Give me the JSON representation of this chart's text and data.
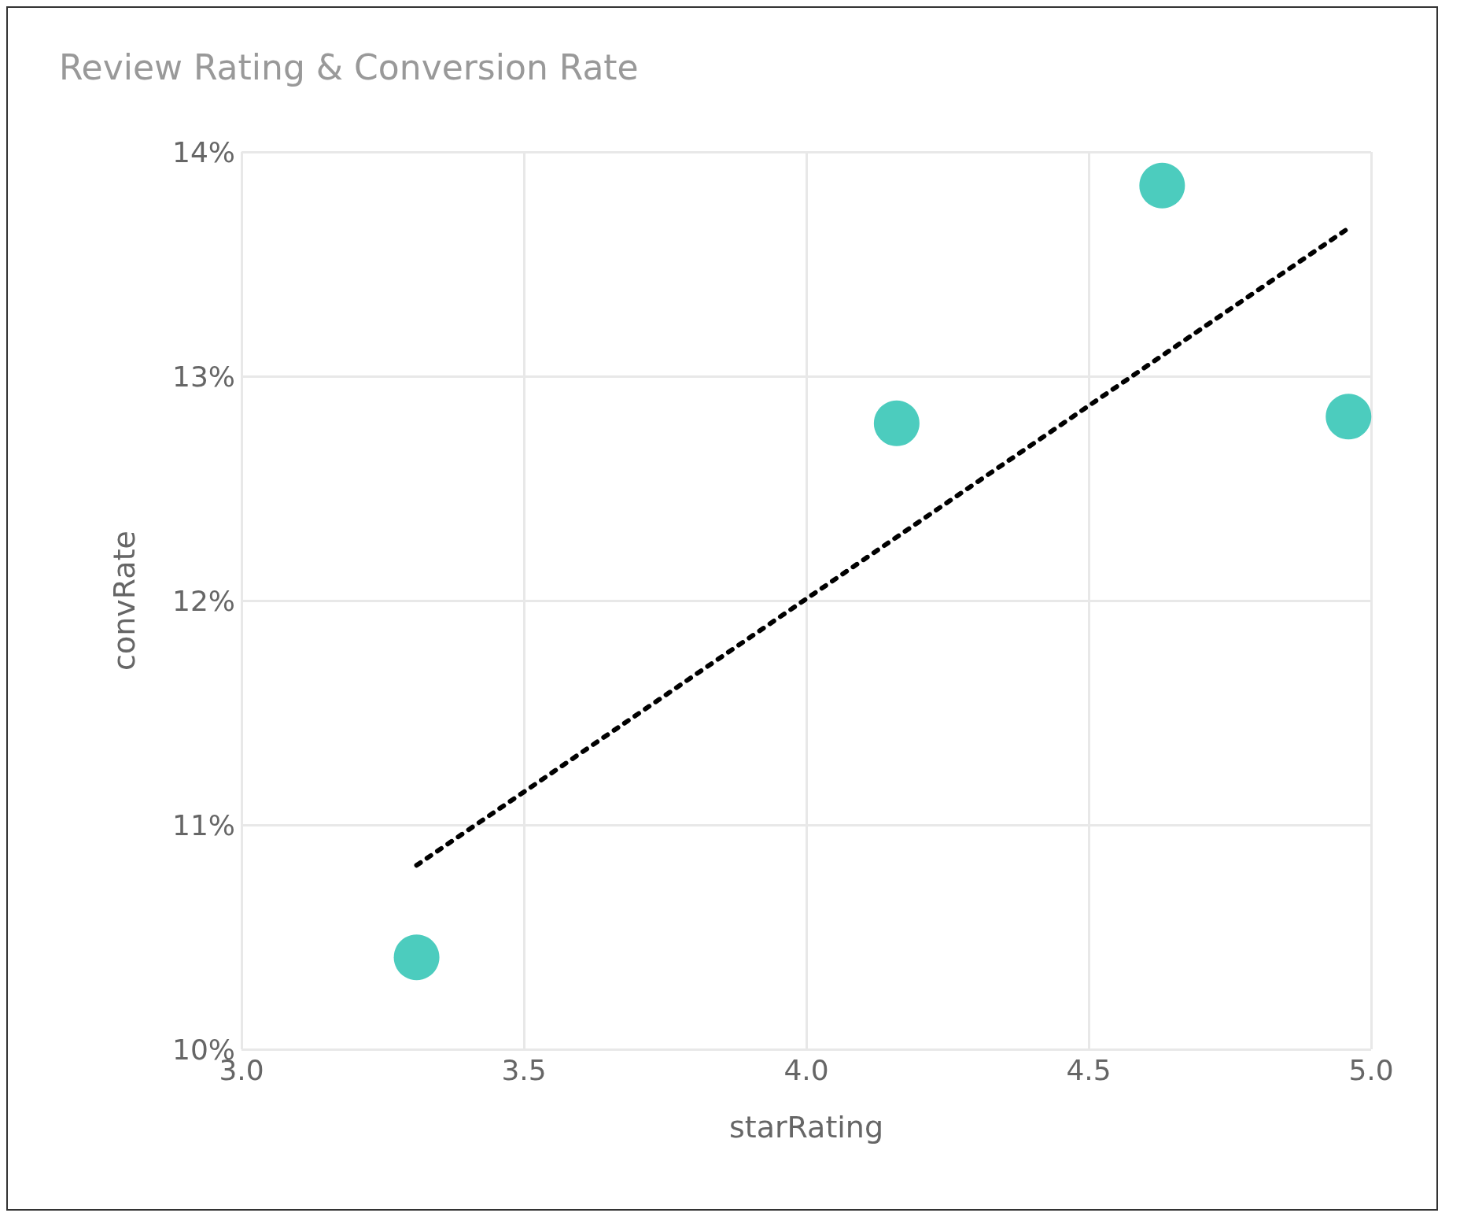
{
  "chart_data": {
    "type": "scatter",
    "title": "Review Rating & Conversion Rate",
    "xlabel": "starRating",
    "ylabel": "convRate",
    "x": [
      3.31,
      4.16,
      4.63,
      4.96
    ],
    "series": [
      {
        "type": "scatter",
        "color": "#1fbfae",
        "marker": "circle",
        "values": [
          10.41,
          12.79,
          13.85,
          12.82
        ]
      },
      {
        "type": "line",
        "color": "#000000",
        "marker": "none",
        "line_style": "dashed",
        "x": [
          3.31,
          4.96
        ],
        "values": [
          10.82,
          13.66
        ]
      }
    ],
    "xlim": [
      3.0,
      5.0
    ],
    "xticks": [
      {
        "value": 3,
        "label": "3.0"
      },
      3.5,
      {
        "value": 4,
        "label": "4.0"
      },
      4.5,
      {
        "value": 5,
        "label": "5.0"
      }
    ],
    "ylim": [
      10,
      14
    ],
    "yticks": [
      {
        "value": 10,
        "label": "10%"
      },
      {
        "value": 11,
        "label": "11%"
      },
      {
        "value": 12,
        "label": "12%"
      },
      {
        "value": 13,
        "label": "13%"
      },
      {
        "value": 14,
        "label": "14%"
      }
    ],
    "grid": true
  }
}
